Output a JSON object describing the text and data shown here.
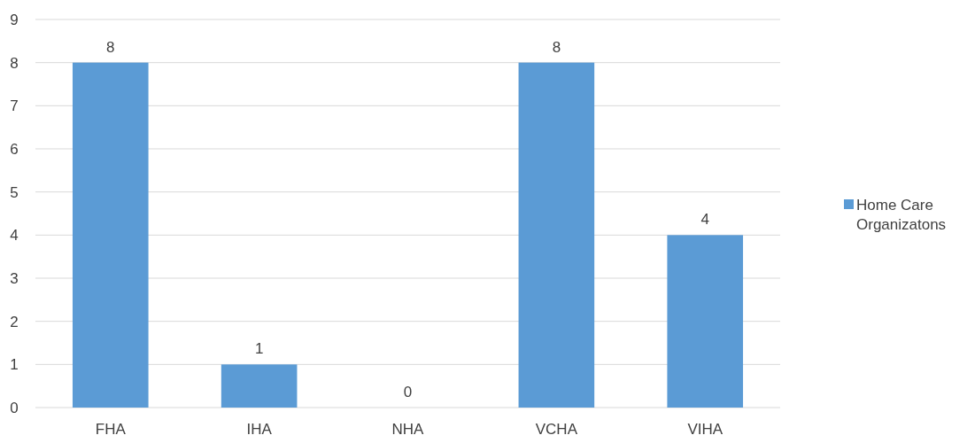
{
  "chart_data": {
    "type": "bar",
    "categories": [
      "FHA",
      "IHA",
      "NHA",
      "VCHA",
      "VIHA"
    ],
    "series": [
      {
        "name": "Home Care Organizatons",
        "color": "#5b9bd5",
        "values": [
          8,
          1,
          0,
          8,
          4
        ]
      }
    ],
    "ylim": [
      0,
      9
    ],
    "yticks": [
      0,
      1,
      2,
      3,
      4,
      5,
      6,
      7,
      8,
      9
    ],
    "grid": "y",
    "legend": "right",
    "data_labels": true
  }
}
